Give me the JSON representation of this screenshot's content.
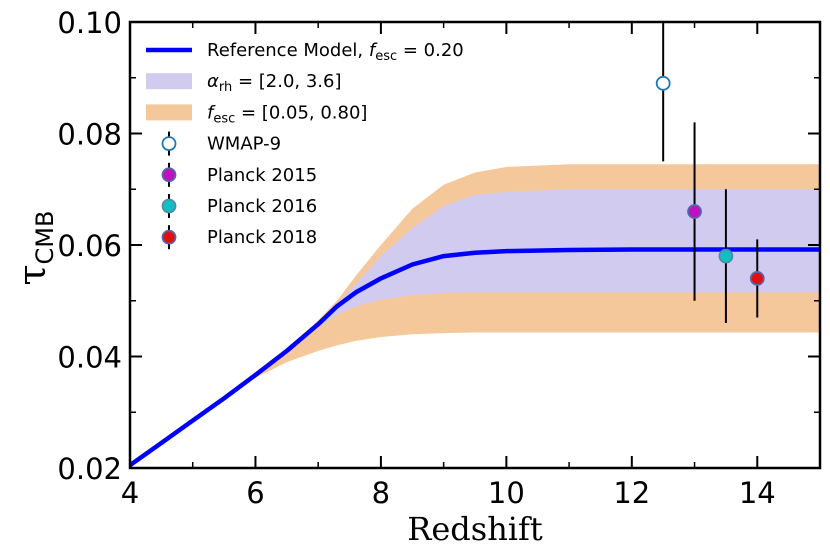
{
  "chart_data": {
    "type": "line",
    "xlabel": "Redshift",
    "ylabel": "τ",
    "ylabel_sub": "CMB",
    "xlim": [
      4,
      15
    ],
    "ylim": [
      0.02,
      0.1
    ],
    "xticks": [
      4,
      6,
      8,
      10,
      12,
      14
    ],
    "xtick_labels": [
      "4",
      "6",
      "8",
      "10",
      "12",
      "14"
    ],
    "yticks": [
      0.02,
      0.04,
      0.06,
      0.08,
      0.1
    ],
    "ytick_labels": [
      "0.02",
      "0.04",
      "0.06",
      "0.08",
      "0.10"
    ],
    "grid": false,
    "legend_position": "top-left",
    "series": [
      {
        "name": "Reference Model, f_esc = 0.20",
        "kind": "line",
        "color": "#0000ff",
        "x": [
          4.0,
          4.5,
          5.0,
          5.5,
          6.0,
          6.5,
          7.0,
          7.3,
          7.6,
          8.0,
          8.5,
          9.0,
          9.5,
          10.0,
          11.0,
          12.0,
          13.0,
          14.0,
          15.0
        ],
        "y": [
          0.0205,
          0.0245,
          0.0285,
          0.0325,
          0.0367,
          0.041,
          0.0458,
          0.049,
          0.0515,
          0.054,
          0.0565,
          0.058,
          0.0586,
          0.0589,
          0.0591,
          0.0592,
          0.0592,
          0.0592,
          0.0592
        ]
      }
    ],
    "bands": [
      {
        "name": "f_esc = [0.05, 0.80]",
        "color": "#f5c89c",
        "x": [
          4.0,
          4.5,
          5.0,
          5.5,
          6.0,
          6.5,
          7.0,
          7.3,
          7.6,
          8.0,
          8.5,
          9.0,
          9.5,
          10.0,
          11.0,
          12.0,
          13.0,
          14.0,
          15.0
        ],
        "lower": [
          0.0205,
          0.0245,
          0.0285,
          0.0325,
          0.0362,
          0.039,
          0.041,
          0.042,
          0.0428,
          0.0435,
          0.044,
          0.0442,
          0.0443,
          0.0443,
          0.0443,
          0.0443,
          0.0443,
          0.0443,
          0.0443
        ],
        "upper": [
          0.0205,
          0.0245,
          0.0285,
          0.0325,
          0.0367,
          0.0412,
          0.0465,
          0.05,
          0.0545,
          0.06,
          0.0665,
          0.0708,
          0.073,
          0.074,
          0.0745,
          0.0745,
          0.0745,
          0.0745,
          0.0745
        ]
      },
      {
        "name": "α_rh = [2.0, 3.6]",
        "color": "#d2cbf0",
        "x": [
          4.0,
          4.5,
          5.0,
          5.5,
          6.0,
          6.5,
          7.0,
          7.3,
          7.6,
          8.0,
          8.5,
          9.0,
          9.5,
          10.0,
          11.0,
          12.0,
          13.0,
          14.0,
          15.0
        ],
        "lower": [
          0.0205,
          0.0245,
          0.0285,
          0.0325,
          0.0367,
          0.041,
          0.0452,
          0.0475,
          0.049,
          0.0502,
          0.051,
          0.0514,
          0.0515,
          0.0515,
          0.0515,
          0.0515,
          0.0515,
          0.0515,
          0.0515
        ],
        "upper": [
          0.0205,
          0.0245,
          0.0285,
          0.0325,
          0.0367,
          0.041,
          0.046,
          0.0495,
          0.053,
          0.058,
          0.063,
          0.067,
          0.069,
          0.0695,
          0.07,
          0.07,
          0.07,
          0.07,
          0.07
        ]
      }
    ],
    "points": [
      {
        "name": "WMAP-9",
        "x": 12.5,
        "y": 0.089,
        "yerr_low": 0.014,
        "yerr_high": 0.014,
        "fill": "#ffffff",
        "edge": "#1f77b4"
      },
      {
        "name": "Planck 2015",
        "x": 13.0,
        "y": 0.066,
        "yerr_low": 0.016,
        "yerr_high": 0.016,
        "fill": "#c010c0",
        "edge": "#5566aa"
      },
      {
        "name": "Planck 2016",
        "x": 13.5,
        "y": 0.058,
        "yerr_low": 0.012,
        "yerr_high": 0.012,
        "fill": "#10c0c0",
        "edge": "#5588aa"
      },
      {
        "name": "Planck 2018",
        "x": 14.0,
        "y": 0.054,
        "yerr_low": 0.007,
        "yerr_high": 0.007,
        "fill": "#e01010",
        "edge": "#5566aa"
      }
    ],
    "legend": [
      {
        "kind": "line",
        "color": "#0000ff",
        "label": "Reference Model, ",
        "math_var": "f",
        "math_sub": "esc",
        "tail": " = 0.20"
      },
      {
        "kind": "patch",
        "color": "#d2cbf0",
        "label": "",
        "math_var": "α",
        "math_sub": "rh",
        "tail": " = [2.0, 3.6]"
      },
      {
        "kind": "patch",
        "color": "#f5c89c",
        "label": "",
        "math_var": "f",
        "math_sub": "esc",
        "tail": " = [0.05, 0.80]"
      },
      {
        "kind": "marker",
        "fill": "#ffffff",
        "edge": "#1f77b4",
        "label": "WMAP-9",
        "math_var": "",
        "math_sub": "",
        "tail": ""
      },
      {
        "kind": "marker",
        "fill": "#c010c0",
        "edge": "#5566aa",
        "label": "Planck 2015",
        "math_var": "",
        "math_sub": "",
        "tail": ""
      },
      {
        "kind": "marker",
        "fill": "#10c0c0",
        "edge": "#5588aa",
        "label": "Planck 2016",
        "math_var": "",
        "math_sub": "",
        "tail": ""
      },
      {
        "kind": "marker",
        "fill": "#e01010",
        "edge": "#5566aa",
        "label": "Planck 2018",
        "math_var": "",
        "math_sub": "",
        "tail": ""
      }
    ]
  }
}
